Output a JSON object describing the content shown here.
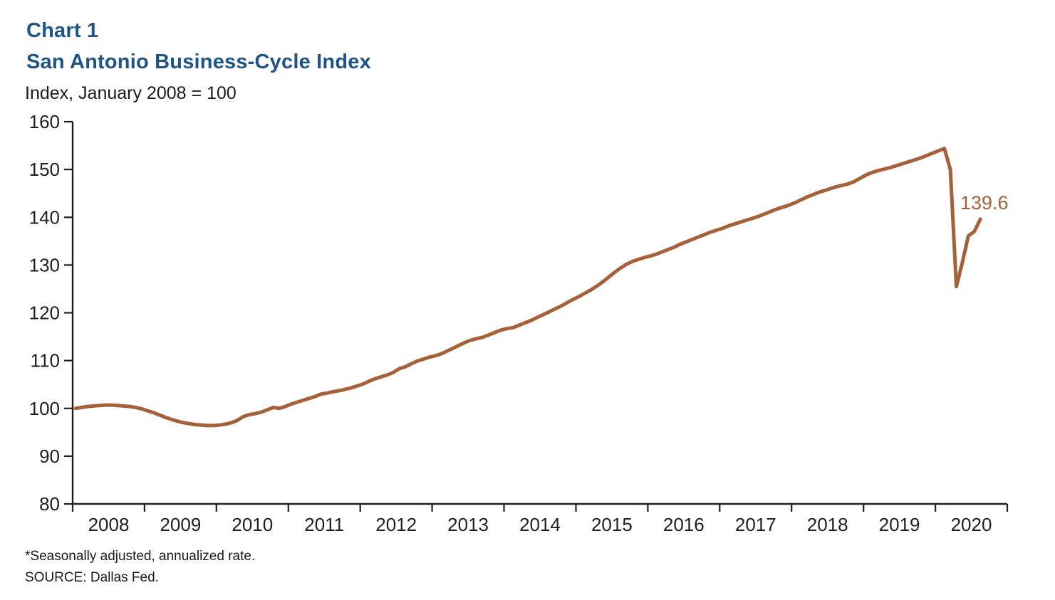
{
  "header": {
    "chart_label": "Chart 1",
    "title": "San Antonio Business-Cycle Index",
    "subtitle": "Index, January 2008 = 100"
  },
  "footnotes": {
    "line1": "*Seasonally adjusted, annualized rate.",
    "line2": "SOURCE: Dallas Fed."
  },
  "colors": {
    "title_blue": "#1F5586",
    "line_brown": "#A5613A",
    "axis_black": "#231F20"
  },
  "chart_data": {
    "type": "line",
    "title": "San Antonio Business-Cycle Index",
    "ylabel": "Index, January 2008 = 100",
    "frequency": "monthly",
    "x_start": "2008-01",
    "x_end": "2020-08",
    "x_tick_labels": [
      "2008",
      "2009",
      "2010",
      "2011",
      "2012",
      "2013",
      "2014",
      "2015",
      "2016",
      "2017",
      "2018",
      "2019",
      "2020"
    ],
    "y_ticks": [
      80,
      90,
      100,
      110,
      120,
      130,
      140,
      150,
      160
    ],
    "ylim": [
      80,
      160
    ],
    "grid": false,
    "legend": "none",
    "annotation": {
      "text": "139.6",
      "value": 139.6,
      "month": "2020-08"
    },
    "series": [
      {
        "name": "San Antonio Business-Cycle Index",
        "color": "#A5613A",
        "values": [
          100.0,
          100.2,
          100.4,
          100.5,
          100.6,
          100.7,
          100.7,
          100.6,
          100.5,
          100.4,
          100.2,
          99.9,
          99.5,
          99.1,
          98.6,
          98.1,
          97.7,
          97.3,
          97.0,
          96.8,
          96.6,
          96.5,
          96.4,
          96.4,
          96.5,
          96.7,
          97.0,
          97.5,
          98.3,
          98.7,
          98.9,
          99.2,
          99.7,
          100.2,
          100.0,
          100.4,
          100.9,
          101.3,
          101.7,
          102.1,
          102.5,
          103.0,
          103.2,
          103.5,
          103.7,
          104.0,
          104.3,
          104.7,
          105.1,
          105.7,
          106.2,
          106.6,
          107.0,
          107.5,
          108.3,
          108.7,
          109.3,
          109.9,
          110.3,
          110.7,
          111.0,
          111.4,
          112.0,
          112.6,
          113.2,
          113.8,
          114.3,
          114.6,
          114.9,
          115.4,
          115.9,
          116.4,
          116.7,
          116.9,
          117.4,
          117.9,
          118.4,
          119.0,
          119.6,
          120.2,
          120.8,
          121.4,
          122.1,
          122.8,
          123.4,
          124.1,
          124.8,
          125.6,
          126.5,
          127.5,
          128.5,
          129.4,
          130.2,
          130.8,
          131.2,
          131.6,
          131.9,
          132.3,
          132.8,
          133.3,
          133.8,
          134.4,
          134.9,
          135.4,
          135.9,
          136.4,
          136.9,
          137.3,
          137.7,
          138.2,
          138.6,
          139.0,
          139.4,
          139.8,
          140.2,
          140.7,
          141.2,
          141.7,
          142.1,
          142.5,
          143.0,
          143.6,
          144.2,
          144.7,
          145.2,
          145.6,
          146.0,
          146.4,
          146.7,
          147.0,
          147.5,
          148.2,
          148.9,
          149.4,
          149.8,
          150.1,
          150.4,
          150.8,
          151.2,
          151.6,
          152.0,
          152.4,
          152.9,
          153.4,
          153.9,
          154.4,
          150.0,
          125.5,
          130.5,
          136.1,
          137.0,
          139.6
        ]
      }
    ]
  }
}
